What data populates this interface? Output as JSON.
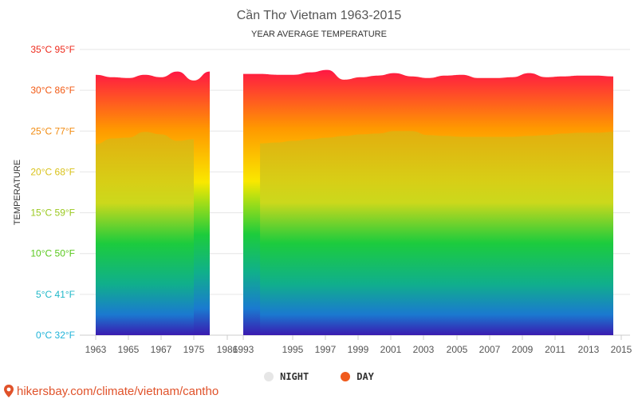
{
  "chart_data": {
    "type": "area",
    "title": "Cần Thơ Vietnam 1963-2015",
    "subtitle": "YEAR AVERAGE TEMPERATURE",
    "ylabel": "TEMPERATURE",
    "y_ticks": [
      {
        "value": 0,
        "label": "0°C 32°F",
        "color": "#1fb3d8"
      },
      {
        "value": 5,
        "label": "5°C 41°F",
        "color": "#20b8c8"
      },
      {
        "value": 10,
        "label": "10°C 50°F",
        "color": "#5ac81e"
      },
      {
        "value": 15,
        "label": "15°C 59°F",
        "color": "#9ac81e"
      },
      {
        "value": 20,
        "label": "20°C 68°F",
        "color": "#d9c21a"
      },
      {
        "value": 25,
        "label": "25°C 77°F",
        "color": "#f28c12"
      },
      {
        "value": 30,
        "label": "30°C 86°F",
        "color": "#f25a14"
      },
      {
        "value": 35,
        "label": "35°C 95°F",
        "color": "#ee2a1c"
      }
    ],
    "ylim": [
      0,
      35
    ],
    "x_ticks": [
      "1963",
      "1965",
      "1967",
      "1975",
      "1986",
      "1993",
      "1995",
      "1997",
      "1999",
      "2001",
      "2003",
      "2005",
      "2007",
      "2009",
      "2011",
      "2013",
      "2015"
    ],
    "grid": true,
    "legend": "bottom-center",
    "series": [
      {
        "name": "DAY",
        "color": "#f05a1c",
        "segments": [
          [
            [
              "1963",
              31.9
            ],
            [
              "1964",
              31.6
            ],
            [
              "1965",
              31.5
            ],
            [
              "1966",
              31.9
            ],
            [
              "1967",
              31.6
            ],
            [
              "1968",
              32.3
            ],
            [
              "1975",
              31.2
            ],
            [
              "1976",
              32.3
            ]
          ],
          [
            [
              "1993",
              32.0
            ],
            [
              "1994",
              32.0
            ],
            [
              "1995",
              31.9
            ],
            [
              "1996",
              31.9
            ],
            [
              "1997",
              32.2
            ],
            [
              "1998",
              32.5
            ],
            [
              "1999",
              31.3
            ],
            [
              "2000",
              31.6
            ],
            [
              "2001",
              31.8
            ],
            [
              "2002",
              32.1
            ],
            [
              "2003",
              31.7
            ],
            [
              "2004",
              31.5
            ],
            [
              "2005",
              31.8
            ],
            [
              "2006",
              31.9
            ],
            [
              "2007",
              31.5
            ],
            [
              "2008",
              31.5
            ],
            [
              "2009",
              31.6
            ],
            [
              "2010",
              32.1
            ],
            [
              "2011",
              31.6
            ],
            [
              "2012",
              31.7
            ],
            [
              "2013",
              31.8
            ],
            [
              "2014",
              31.8
            ],
            [
              "2015",
              31.7
            ]
          ]
        ]
      },
      {
        "name": "NIGHT",
        "color": "#e6e6e6",
        "segments": [
          [
            [
              "1963",
              23.4
            ],
            [
              "1964",
              24.1
            ],
            [
              "1965",
              24.2
            ],
            [
              "1966",
              24.9
            ],
            [
              "1967",
              24.6
            ],
            [
              "1968",
              23.8
            ],
            [
              "1975",
              24.0
            ]
          ],
          [
            [
              "1994",
              23.5
            ],
            [
              "1995",
              23.6
            ],
            [
              "1996",
              23.8
            ],
            [
              "1997",
              24.0
            ],
            [
              "1998",
              24.2
            ],
            [
              "1999",
              24.4
            ],
            [
              "2000",
              24.6
            ],
            [
              "2001",
              24.7
            ],
            [
              "2002",
              25.0
            ],
            [
              "2003",
              25.0
            ],
            [
              "2004",
              24.5
            ],
            [
              "2005",
              24.4
            ],
            [
              "2006",
              24.3
            ],
            [
              "2007",
              24.3
            ],
            [
              "2008",
              24.3
            ],
            [
              "2009",
              24.3
            ],
            [
              "2010",
              24.4
            ],
            [
              "2011",
              24.5
            ],
            [
              "2012",
              24.7
            ],
            [
              "2013",
              24.8
            ],
            [
              "2014",
              24.8
            ],
            [
              "2015",
              24.9
            ]
          ]
        ]
      }
    ]
  },
  "legend": {
    "items": [
      {
        "label": "NIGHT",
        "color": "#e6e6e6"
      },
      {
        "label": "DAY",
        "color": "#f05a1c"
      }
    ]
  },
  "footer": {
    "source": "hikersbay.com/climate/vietnam/cantho"
  },
  "colors": {
    "gradient_top": "#ff1744",
    "gradient_orange": "#ff9800",
    "gradient_yellow": "#f9e800",
    "gradient_green": "#1ccc3c",
    "gradient_teal": "#10b08a",
    "gradient_blue": "#1a7ad0",
    "gradient_bottom": "#3a1ab0",
    "pin": "#e0522a"
  }
}
